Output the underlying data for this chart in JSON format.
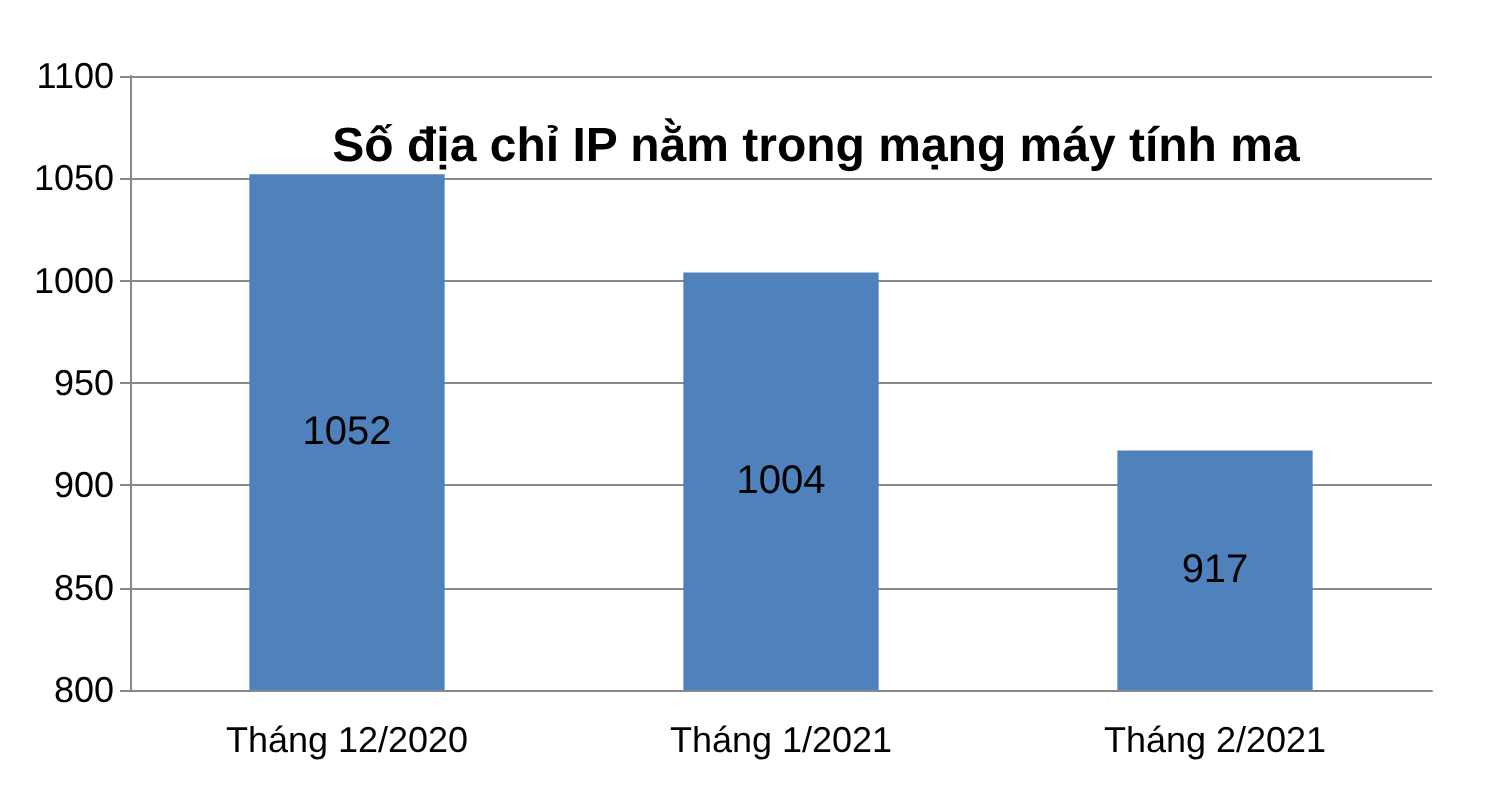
{
  "chart_data": {
    "type": "bar",
    "title": "Số địa chỉ IP nằm trong mạng máy tính ma",
    "categories": [
      "Tháng 12/2020",
      "Tháng 1/2021",
      "Tháng 2/2021"
    ],
    "values": [
      1052,
      1004,
      917
    ],
    "color": "#4f81bd",
    "ylim": [
      800,
      1100
    ],
    "yticks": [
      800,
      850,
      900,
      950,
      1000,
      1050,
      1100
    ],
    "grid": "y",
    "data_labels": true
  }
}
